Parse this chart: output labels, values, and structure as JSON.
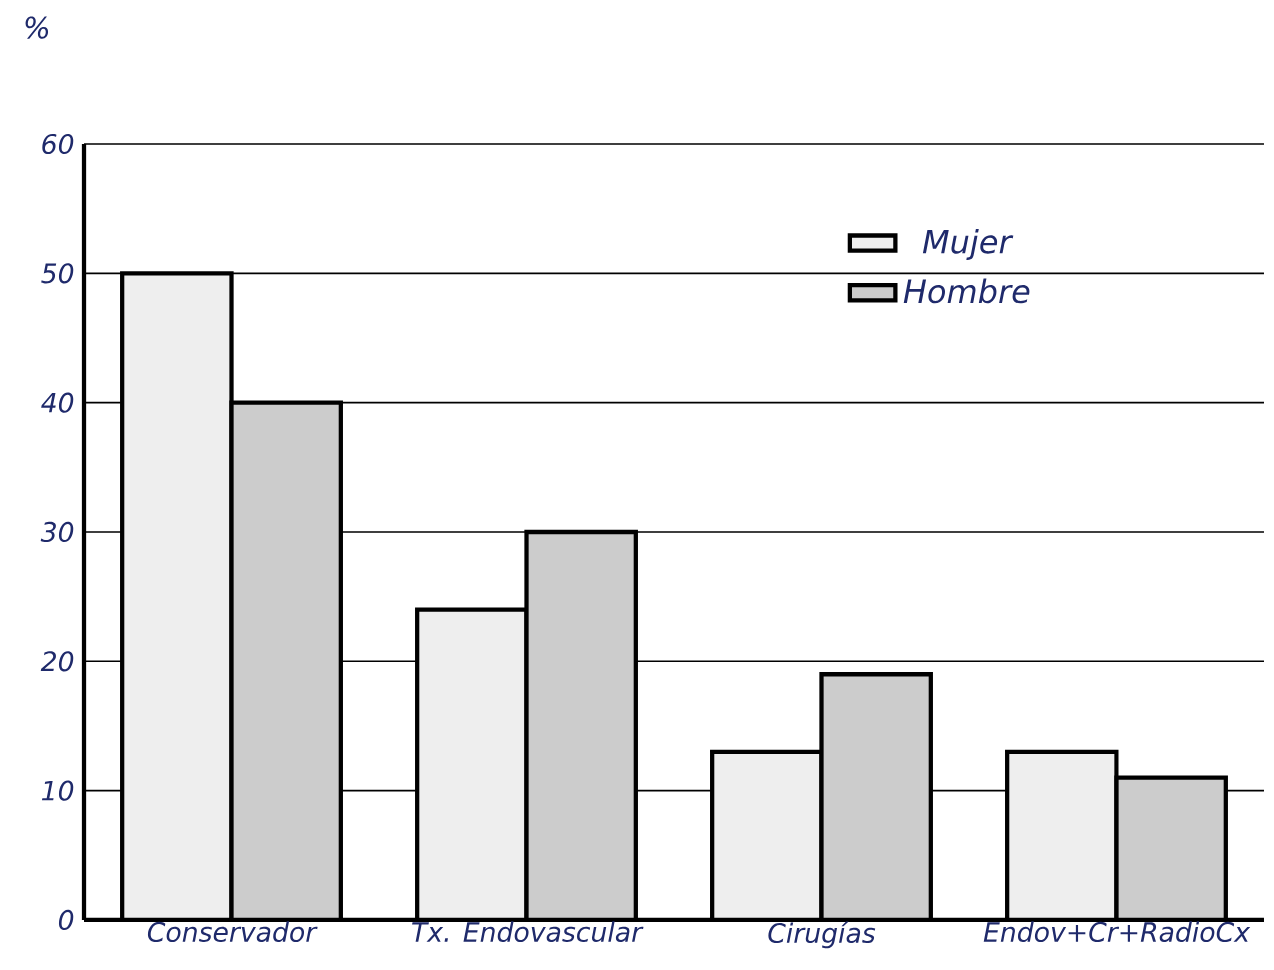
{
  "chart_data": {
    "type": "bar",
    "ylabel": "%",
    "categories": [
      "Conservador",
      "Tx. Endovascular",
      "Cirugías",
      "Endov+Cr+RadioCx"
    ],
    "series": [
      {
        "name": "Mujer",
        "color": "#eeeeee",
        "values": [
          50,
          24,
          13,
          13
        ]
      },
      {
        "name": "Hombre",
        "color": "#cccccc",
        "values": [
          40,
          30,
          19,
          11
        ]
      }
    ],
    "ylim": [
      0,
      60
    ],
    "yticks": [
      0,
      10,
      20,
      30,
      40,
      50,
      60
    ],
    "grid": "y",
    "legend": "top right"
  }
}
